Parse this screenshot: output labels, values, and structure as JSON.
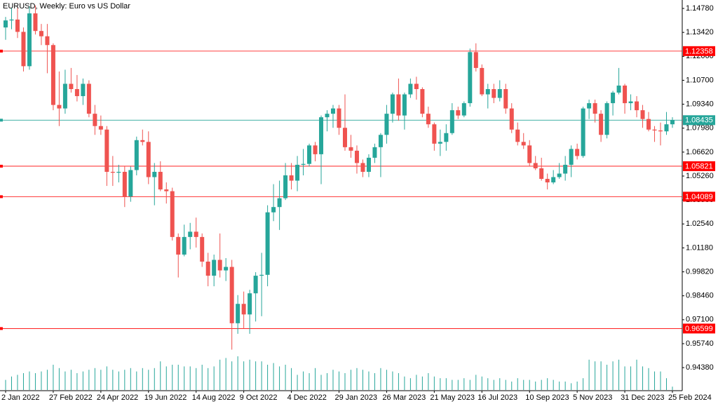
{
  "chart_data": {
    "type": "candlestick",
    "title": "EURUSD, Weekly:  Euro vs US Dollar",
    "ylim": [
      0.9307,
      1.1526
    ],
    "yticks": [
      {
        "value": 1.1478,
        "label": "1.14780"
      },
      {
        "value": 1.1342,
        "label": "1.13420"
      },
      {
        "value": 1.1206,
        "label": "1.12060"
      },
      {
        "value": 1.107,
        "label": "1.10700"
      },
      {
        "value": 1.0934,
        "label": "1.09340"
      },
      {
        "value": 1.0798,
        "label": "1.07980"
      },
      {
        "value": 1.0662,
        "label": "1.06620"
      },
      {
        "value": 1.0526,
        "label": "1.05260"
      },
      {
        "value": 1.039,
        "label": "1.03900"
      },
      {
        "value": 1.0254,
        "label": "1.02540"
      },
      {
        "value": 1.0118,
        "label": "1.01180"
      },
      {
        "value": 0.9982,
        "label": "0.99820"
      },
      {
        "value": 0.9846,
        "label": "0.98460"
      },
      {
        "value": 0.971,
        "label": "0.97100"
      },
      {
        "value": 0.9574,
        "label": "0.95740"
      },
      {
        "value": 0.9438,
        "label": "0.94380"
      }
    ],
    "bull_color": "#26a69a",
    "bear_color": "#ef5350",
    "levels": [
      1.12358,
      1.05821,
      1.04089,
      0.96599
    ],
    "level_color": "#ff0000",
    "current_price": 1.08435,
    "current_color": "#26a69a",
    "categories": [
      "2 Jan 2022",
      null,
      null,
      null,
      null,
      null,
      null,
      null,
      "27 Feb 2022",
      null,
      null,
      null,
      null,
      null,
      null,
      null,
      "24 Apr 2022",
      null,
      null,
      null,
      null,
      null,
      null,
      null,
      "19 Jun 2022",
      null,
      null,
      null,
      null,
      null,
      null,
      null,
      "14 Aug 2022",
      null,
      null,
      null,
      null,
      null,
      null,
      null,
      "9 Oct 2022",
      null,
      null,
      null,
      null,
      null,
      null,
      null,
      "4 Dec 2022",
      null,
      null,
      null,
      null,
      null,
      null,
      null,
      "29 Jan 2023",
      null,
      null,
      null,
      null,
      null,
      null,
      null,
      "26 Mar 2023",
      null,
      null,
      null,
      null,
      null,
      null,
      null,
      "21 May 2023",
      null,
      null,
      null,
      null,
      null,
      null,
      null,
      "16 Jul 2023",
      null,
      null,
      null,
      null,
      null,
      null,
      null,
      "10 Sep 2023",
      null,
      null,
      null,
      null,
      null,
      null,
      null,
      "5 Nov 2023",
      null,
      null,
      null,
      null,
      null,
      null,
      null,
      "31 Dec 2023",
      null,
      null,
      null,
      null,
      null,
      null,
      null,
      "25 Feb 2024"
    ],
    "ohlc": [
      [
        1.137,
        1.143,
        1.13,
        1.141
      ],
      [
        1.141,
        1.148,
        1.136,
        1.1415
      ],
      [
        1.1415,
        1.148,
        1.131,
        1.1345
      ],
      [
        1.1345,
        1.137,
        1.112,
        1.115
      ],
      [
        1.115,
        1.149,
        1.113,
        1.145
      ],
      [
        1.145,
        1.1495,
        1.133,
        1.135
      ],
      [
        1.135,
        1.139,
        1.127,
        1.132
      ],
      [
        1.132,
        1.139,
        1.111,
        1.127
      ],
      [
        1.127,
        1.128,
        1.09,
        1.093
      ],
      [
        1.093,
        1.112,
        1.081,
        1.091
      ],
      [
        1.091,
        1.113,
        1.088,
        1.105
      ],
      [
        1.105,
        1.114,
        1.1,
        1.102
      ],
      [
        1.102,
        1.11,
        1.095,
        1.098
      ],
      [
        1.098,
        1.108,
        1.093,
        1.105
      ],
      [
        1.105,
        1.107,
        1.086,
        1.088
      ],
      [
        1.088,
        1.093,
        1.076,
        1.081
      ],
      [
        1.081,
        1.087,
        1.076,
        1.079
      ],
      [
        1.079,
        1.081,
        1.047,
        1.055
      ],
      [
        1.055,
        1.064,
        1.047,
        1.0545
      ],
      [
        1.0545,
        1.059,
        1.049,
        1.055
      ],
      [
        1.055,
        1.058,
        1.035,
        1.041
      ],
      [
        1.041,
        1.058,
        1.038,
        1.056
      ],
      [
        1.056,
        1.075,
        1.053,
        1.073
      ],
      [
        1.073,
        1.079,
        1.07,
        1.072
      ],
      [
        1.072,
        1.078,
        1.048,
        1.052
      ],
      [
        1.052,
        1.06,
        1.036,
        1.055
      ],
      [
        1.055,
        1.061,
        1.044,
        1.045
      ],
      [
        1.045,
        1.049,
        1.037,
        1.044
      ],
      [
        1.044,
        1.046,
        1.016,
        1.018
      ],
      [
        1.018,
        1.02,
        0.995,
        1.008
      ],
      [
        1.008,
        1.025,
        1.007,
        1.018
      ],
      [
        1.018,
        1.026,
        1.011,
        1.021
      ],
      [
        1.021,
        1.029,
        1.012,
        1.018
      ],
      [
        1.018,
        1.02,
        1.001,
        1.004
      ],
      [
        1.004,
        1.009,
        0.99,
        0.996
      ],
      [
        0.996,
        1.008,
        0.99,
        1.005
      ],
      [
        1.005,
        1.02,
        0.995,
        0.999
      ],
      [
        0.999,
        1.006,
        0.993,
        1.001
      ],
      [
        1.001,
        1.005,
        0.954,
        0.969
      ],
      [
        0.969,
        0.985,
        0.963,
        0.98
      ],
      [
        0.98,
        0.987,
        0.966,
        0.974
      ],
      [
        0.974,
        0.988,
        0.963,
        0.986
      ],
      [
        0.986,
        0.998,
        0.97,
        0.996
      ],
      [
        0.996,
        1.009,
        0.973,
        0.9965
      ],
      [
        0.9965,
        1.036,
        0.99,
        1.032
      ],
      [
        1.032,
        1.048,
        1.027,
        1.035
      ],
      [
        1.035,
        1.05,
        1.022,
        1.04
      ],
      [
        1.04,
        1.06,
        1.039,
        1.053
      ],
      [
        1.053,
        1.06,
        1.045,
        1.05
      ],
      [
        1.05,
        1.064,
        1.044,
        1.059
      ],
      [
        1.059,
        1.068,
        1.053,
        1.0595
      ],
      [
        1.0595,
        1.071,
        1.058,
        1.07
      ],
      [
        1.07,
        1.072,
        1.061,
        1.065
      ],
      [
        1.065,
        1.087,
        1.048,
        1.086
      ],
      [
        1.086,
        1.09,
        1.078,
        1.088
      ],
      [
        1.088,
        1.093,
        1.08,
        1.091
      ],
      [
        1.091,
        1.093,
        1.076,
        1.08
      ],
      [
        1.08,
        1.099,
        1.067,
        1.069
      ],
      [
        1.069,
        1.076,
        1.063,
        1.067
      ],
      [
        1.067,
        1.07,
        1.054,
        1.06
      ],
      [
        1.06,
        1.062,
        1.052,
        1.055
      ],
      [
        1.055,
        1.065,
        1.052,
        1.063
      ],
      [
        1.063,
        1.071,
        1.06,
        1.069
      ],
      [
        1.069,
        1.077,
        1.052,
        1.076
      ],
      [
        1.076,
        1.093,
        1.071,
        1.088
      ],
      [
        1.088,
        1.1,
        1.083,
        1.099
      ],
      [
        1.099,
        1.108,
        1.084,
        1.087
      ],
      [
        1.087,
        1.1,
        1.079,
        1.099
      ],
      [
        1.099,
        1.108,
        1.097,
        1.105
      ],
      [
        1.105,
        1.109,
        1.096,
        1.102
      ],
      [
        1.102,
        1.103,
        1.086,
        1.088
      ],
      [
        1.088,
        1.092,
        1.08,
        1.082
      ],
      [
        1.082,
        1.083,
        1.067,
        1.071
      ],
      [
        1.071,
        1.079,
        1.064,
        1.072
      ],
      [
        1.072,
        1.082,
        1.067,
        1.077
      ],
      [
        1.077,
        1.094,
        1.076,
        1.09
      ],
      [
        1.09,
        1.092,
        1.085,
        1.087
      ],
      [
        1.087,
        1.095,
        1.086,
        1.094
      ],
      [
        1.094,
        1.125,
        1.092,
        1.123
      ],
      [
        1.123,
        1.128,
        1.112,
        1.114
      ],
      [
        1.114,
        1.116,
        1.098,
        1.099
      ],
      [
        1.099,
        1.105,
        1.091,
        1.102
      ],
      [
        1.102,
        1.105,
        1.094,
        1.097
      ],
      [
        1.097,
        1.107,
        1.095,
        1.102
      ],
      [
        1.102,
        1.105,
        1.088,
        1.091
      ],
      [
        1.091,
        1.094,
        1.077,
        1.079
      ],
      [
        1.079,
        1.083,
        1.07,
        1.072
      ],
      [
        1.072,
        1.077,
        1.068,
        1.07
      ],
      [
        1.07,
        1.073,
        1.058,
        1.06
      ],
      [
        1.06,
        1.064,
        1.056,
        1.057
      ],
      [
        1.057,
        1.063,
        1.05,
        1.051
      ],
      [
        1.051,
        1.054,
        1.045,
        1.049
      ],
      [
        1.049,
        1.056,
        1.048,
        1.052
      ],
      [
        1.052,
        1.06,
        1.051,
        1.054
      ],
      [
        1.054,
        1.064,
        1.05,
        1.059
      ],
      [
        1.059,
        1.07,
        1.052,
        1.068
      ],
      [
        1.068,
        1.071,
        1.062,
        1.064
      ],
      [
        1.064,
        1.092,
        1.063,
        1.091
      ],
      [
        1.091,
        1.096,
        1.085,
        1.094
      ],
      [
        1.094,
        1.096,
        1.083,
        1.088
      ],
      [
        1.088,
        1.09,
        1.072,
        1.076
      ],
      [
        1.076,
        1.095,
        1.074,
        1.094
      ],
      [
        1.094,
        1.101,
        1.087,
        1.1
      ],
      [
        1.1,
        1.114,
        1.099,
        1.104
      ],
      [
        1.104,
        1.105,
        1.088,
        1.094
      ],
      [
        1.094,
        1.099,
        1.09,
        1.095
      ],
      [
        1.095,
        1.098,
        1.086,
        1.09
      ],
      [
        1.09,
        1.093,
        1.08,
        1.085
      ],
      [
        1.085,
        1.089,
        1.078,
        1.079
      ],
      [
        1.079,
        1.081,
        1.072,
        1.0785
      ],
      [
        1.0785,
        1.083,
        1.07,
        1.078
      ],
      [
        1.078,
        1.089,
        1.076,
        1.082
      ],
      [
        1.082,
        1.086,
        1.08,
        1.08435
      ]
    ],
    "volume": [
      12,
      16,
      18,
      20,
      22,
      20,
      22,
      24,
      30,
      26,
      22,
      24,
      20,
      22,
      24,
      26,
      24,
      28,
      24,
      22,
      24,
      26,
      22,
      26,
      24,
      26,
      34,
      28,
      30,
      30,
      28,
      28,
      26,
      30,
      26,
      28,
      36,
      38,
      34,
      40,
      34,
      36,
      34,
      34,
      30,
      32,
      28,
      30,
      26,
      18,
      22,
      20,
      26,
      18,
      20,
      24,
      22,
      20,
      24,
      26,
      24,
      22,
      20,
      26,
      24,
      22,
      20,
      16,
      14,
      18,
      16,
      20,
      16,
      14,
      14,
      12,
      12,
      14,
      12,
      18,
      16,
      14,
      12,
      14,
      12,
      10,
      14,
      12,
      12,
      10,
      12,
      14,
      12,
      10,
      10,
      8,
      10,
      14,
      36,
      34,
      34,
      30,
      34,
      36,
      28,
      28,
      36,
      28,
      26,
      22,
      22,
      14,
      4
    ],
    "volume_color": "#26a69a"
  }
}
